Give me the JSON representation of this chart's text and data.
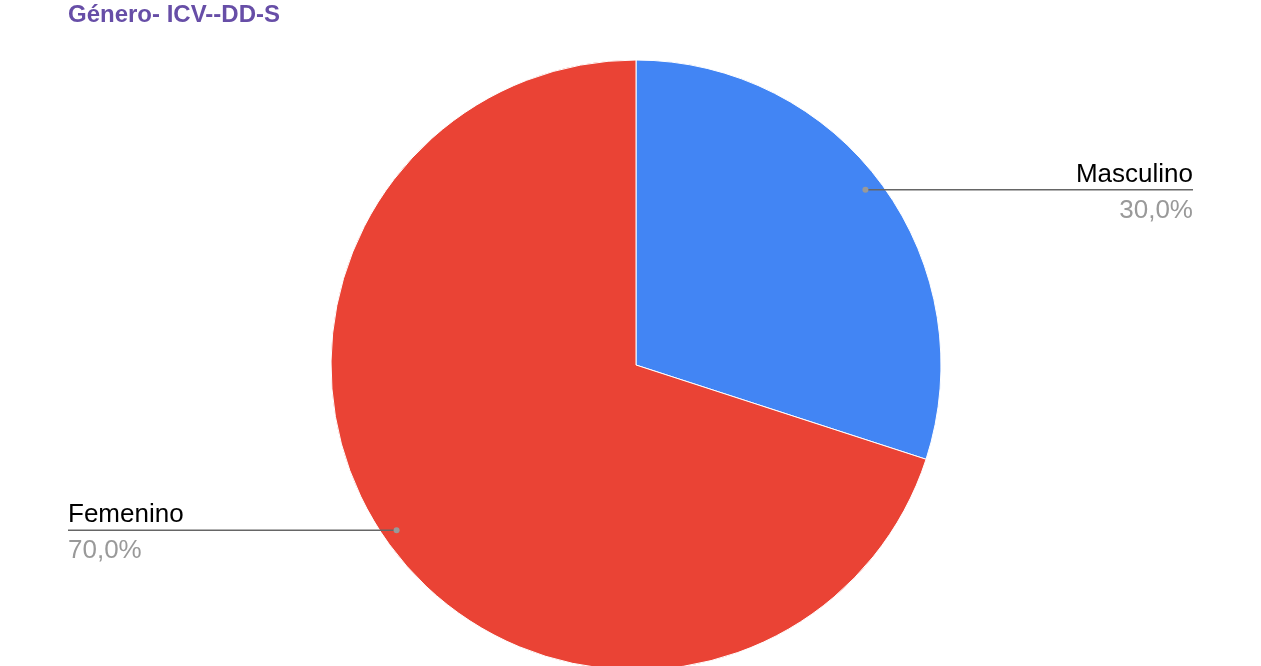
{
  "chart_data": {
    "type": "pie",
    "title": "Género- ICV--DD-S",
    "categories": [
      "Masculino",
      "Femenino"
    ],
    "values": [
      30,
      70
    ],
    "colors": [
      "#4285f4",
      "#ea4335"
    ],
    "value_labels": [
      "30,0%",
      "70,0%"
    ]
  }
}
